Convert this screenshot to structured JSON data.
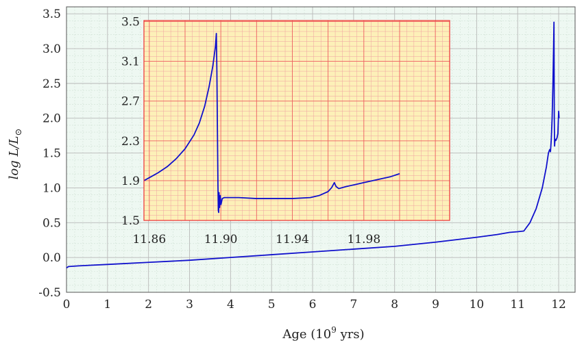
{
  "chart_data": [
    {
      "id": "main",
      "type": "line",
      "xlabel": "Age (10",
      "xlabel_sup": "9",
      "xlabel_tail": " yrs)",
      "ylabel": "log L/L",
      "ylabel_sub": "⊙",
      "xlim": [
        0,
        12.4
      ],
      "ylim": [
        -0.5,
        3.6
      ],
      "xticks": [
        0,
        1,
        2,
        3,
        4,
        5,
        6,
        7,
        8,
        9,
        10,
        11,
        12
      ],
      "xtick_labels": [
        "0",
        "1",
        "2",
        "3",
        "4",
        "5",
        "6",
        "7",
        "8",
        "9",
        "10",
        "11",
        "12"
      ],
      "yticks": [
        -0.5,
        0.0,
        0.5,
        1.0,
        1.5,
        2.0,
        2.5,
        3.0,
        3.5
      ],
      "ytick_labels": [
        "-0.5",
        "0.0",
        "0.5",
        "1.0",
        "1.5",
        "2.0",
        "2.5",
        "3.0",
        "3.5"
      ],
      "grid": true,
      "background": "#eef8f2",
      "grid_color": "#b9b9b9",
      "line_color": "#1010cc",
      "series": [
        {
          "points": [
            [
              0.0,
              -0.15
            ],
            [
              0.05,
              -0.13
            ],
            [
              0.3,
              -0.12
            ],
            [
              1,
              -0.1
            ],
            [
              2,
              -0.07
            ],
            [
              3,
              -0.04
            ],
            [
              4,
              0.0
            ],
            [
              5,
              0.04
            ],
            [
              6,
              0.08
            ],
            [
              7,
              0.12
            ],
            [
              8,
              0.16
            ],
            [
              9,
              0.22
            ],
            [
              10,
              0.29
            ],
            [
              10.5,
              0.33
            ],
            [
              10.8,
              0.36
            ],
            [
              11.0,
              0.37
            ],
            [
              11.15,
              0.38
            ],
            [
              11.3,
              0.5
            ],
            [
              11.45,
              0.7
            ],
            [
              11.6,
              1.0
            ],
            [
              11.7,
              1.3
            ],
            [
              11.75,
              1.5
            ],
            [
              11.78,
              1.55
            ],
            [
              11.8,
              1.52
            ],
            [
              11.82,
              1.7
            ],
            [
              11.84,
              2.0
            ],
            [
              11.86,
              2.5
            ],
            [
              11.875,
              3.0
            ],
            [
              11.885,
              3.38
            ],
            [
              11.893,
              2.0
            ],
            [
              11.9,
              1.6
            ],
            [
              11.91,
              1.7
            ],
            [
              11.93,
              1.68
            ],
            [
              11.96,
              1.72
            ],
            [
              11.98,
              1.78
            ],
            [
              12.0,
              2.1
            ],
            [
              12.01,
              2.0
            ]
          ]
        }
      ]
    },
    {
      "id": "inset",
      "type": "line",
      "xlim": [
        11.857,
        12.028
      ],
      "ylim": [
        1.5,
        3.51
      ],
      "xticks": [
        11.86,
        11.9,
        11.94,
        11.98
      ],
      "xtick_labels": [
        "11.86",
        "11.90",
        "11.94",
        "11.98"
      ],
      "yticks": [
        1.5,
        1.9,
        2.3,
        2.7,
        3.1,
        3.5
      ],
      "ytick_labels": [
        "1.5",
        "1.9",
        "2.3",
        "2.7",
        "3.1",
        "3.5"
      ],
      "grid": true,
      "background": "#fdf0b8",
      "minor_grid_color": "#f0a0a0",
      "major_grid_color": "#ee6060",
      "frame_color": "#ee3030",
      "line_color": "#1010cc",
      "series": [
        {
          "points": [
            [
              11.857,
              1.9
            ],
            [
              11.86,
              1.93
            ],
            [
              11.865,
              1.98
            ],
            [
              11.87,
              2.04
            ],
            [
              11.875,
              2.12
            ],
            [
              11.88,
              2.22
            ],
            [
              11.885,
              2.36
            ],
            [
              11.888,
              2.48
            ],
            [
              11.891,
              2.65
            ],
            [
              11.8935,
              2.85
            ],
            [
              11.8955,
              3.05
            ],
            [
              11.897,
              3.25
            ],
            [
              11.8975,
              3.38
            ],
            [
              11.8978,
              3.0
            ],
            [
              11.8981,
              2.4
            ],
            [
              11.8984,
              1.85
            ],
            [
              11.8986,
              1.6
            ],
            [
              11.8988,
              1.58
            ],
            [
              11.899,
              1.78
            ],
            [
              11.8993,
              1.63
            ],
            [
              11.8997,
              1.75
            ],
            [
              11.9001,
              1.66
            ],
            [
              11.9008,
              1.72
            ],
            [
              11.902,
              1.73
            ],
            [
              11.91,
              1.73
            ],
            [
              11.92,
              1.72
            ],
            [
              11.93,
              1.72
            ],
            [
              11.94,
              1.72
            ],
            [
              11.95,
              1.73
            ],
            [
              11.955,
              1.75
            ],
            [
              11.96,
              1.79
            ],
            [
              11.962,
              1.83
            ],
            [
              11.9635,
              1.88
            ],
            [
              11.9645,
              1.84
            ],
            [
              11.966,
              1.82
            ],
            [
              11.97,
              1.84
            ],
            [
              11.975,
              1.86
            ],
            [
              11.98,
              1.88
            ],
            [
              11.985,
              1.9
            ],
            [
              11.99,
              1.92
            ],
            [
              11.995,
              1.94
            ],
            [
              12.0,
              1.97
            ]
          ]
        }
      ]
    }
  ]
}
